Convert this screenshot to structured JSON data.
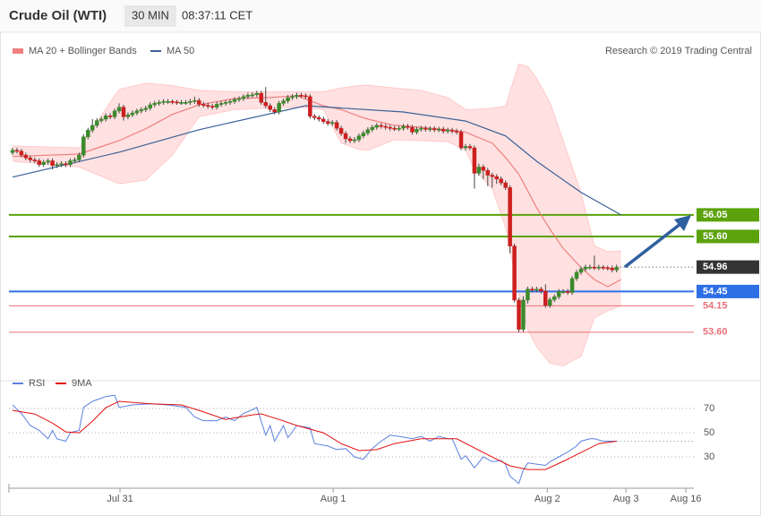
{
  "header": {
    "title": "Crude Oil (WTI)",
    "interval": "30 MIN",
    "time": "08:37:11 CET"
  },
  "chart_data": [
    {
      "type": "candlestick",
      "source": "Research © 2019 Trading Central",
      "xlim": [
        -0.8,
        153.4
      ],
      "xticks": [
        {
          "value": 24.2,
          "label": "Jul 31"
        },
        {
          "value": 72.2,
          "label": "Aug 1"
        },
        {
          "value": 120.4,
          "label": "Aug 2"
        },
        {
          "value": 138.1,
          "label": "Aug 3"
        },
        {
          "value": 151.6,
          "label": "Aug 16"
        }
      ],
      "ylim": [
        52.68,
        59.79
      ],
      "candles": {
        "up_color": "#3b8a2c",
        "down_color": "#cc1f1f",
        "open": [
          57.35,
          57.4,
          57.38,
          57.3,
          57.24,
          57.2,
          57.18,
          57.1,
          57.15,
          57.18,
          57.08,
          57.1,
          57.12,
          57.1,
          57.18,
          57.2,
          57.3,
          57.68,
          57.82,
          57.92,
          58.02,
          58.05,
          58.12,
          58.1,
          58.22,
          58.3,
          58.1,
          58.14,
          58.18,
          58.22,
          58.25,
          58.28,
          58.35,
          58.38,
          58.4,
          58.42,
          58.42,
          58.41,
          58.4,
          58.4,
          58.4,
          58.42,
          58.44,
          58.36,
          58.34,
          58.32,
          58.3,
          58.36,
          58.38,
          58.4,
          58.42,
          58.46,
          58.48,
          58.52,
          58.55,
          58.56,
          58.59,
          58.4,
          58.33,
          58.25,
          58.2,
          58.38,
          58.43,
          58.5,
          58.52,
          58.55,
          58.54,
          58.52,
          58.11,
          58.08,
          58.05,
          58.0,
          57.96,
          57.98,
          57.86,
          57.75,
          57.64,
          57.6,
          57.62,
          57.7,
          57.76,
          57.83,
          57.88,
          57.92,
          57.9,
          57.88,
          57.86,
          57.85,
          57.86,
          57.9,
          57.88,
          57.78,
          57.84,
          57.86,
          57.84,
          57.85,
          57.83,
          57.84,
          57.8,
          57.82,
          57.8,
          57.78,
          57.45,
          57.48,
          57.45,
          56.92,
          57.05,
          56.98,
          56.88,
          56.85,
          56.8,
          56.72,
          56.62,
          55.4,
          54.27,
          53.66,
          54.27,
          54.5,
          54.48,
          54.5,
          54.46,
          54.16,
          54.28,
          54.34,
          54.45,
          54.45,
          54.43,
          54.72,
          54.85,
          54.92,
          54.96,
          54.96,
          54.95,
          54.96,
          54.95,
          54.94,
          54.9
        ],
        "high": [
          57.45,
          57.45,
          57.43,
          57.35,
          57.29,
          57.25,
          57.23,
          57.2,
          57.23,
          57.23,
          57.15,
          57.17,
          57.17,
          57.23,
          57.25,
          57.35,
          57.73,
          57.87,
          58.05,
          58.07,
          58.1,
          58.17,
          58.17,
          58.27,
          58.38,
          58.35,
          58.19,
          58.23,
          58.27,
          58.3,
          58.33,
          58.4,
          58.43,
          58.45,
          58.47,
          58.47,
          58.46,
          58.45,
          58.45,
          58.45,
          58.47,
          58.52,
          58.49,
          58.41,
          58.39,
          58.37,
          58.41,
          58.43,
          58.45,
          58.47,
          58.51,
          58.53,
          58.57,
          58.6,
          58.61,
          58.64,
          58.64,
          58.72,
          58.38,
          58.3,
          58.43,
          58.48,
          58.55,
          58.57,
          58.6,
          58.6,
          58.59,
          58.57,
          58.16,
          58.13,
          58.1,
          58.05,
          58.03,
          58.03,
          57.91,
          57.8,
          57.69,
          57.67,
          57.75,
          57.81,
          57.88,
          57.93,
          57.97,
          57.97,
          57.95,
          57.93,
          57.91,
          57.91,
          57.95,
          57.95,
          57.93,
          57.89,
          57.91,
          57.91,
          57.9,
          57.9,
          57.89,
          57.89,
          57.87,
          57.87,
          57.85,
          57.83,
          57.53,
          57.53,
          57.5,
          57.12,
          57.1,
          57.03,
          56.93,
          56.9,
          56.85,
          56.77,
          56.67,
          55.45,
          54.32,
          54.35,
          54.55,
          54.55,
          54.55,
          54.55,
          54.6,
          54.33,
          54.39,
          54.5,
          54.5,
          54.5,
          54.77,
          54.9,
          54.97,
          55.01,
          55.01,
          55.2,
          55.01,
          55.0,
          54.99,
          54.99,
          55.01
        ],
        "low": [
          57.3,
          57.33,
          57.25,
          57.19,
          57.15,
          57.13,
          57.05,
          57.05,
          57.1,
          57.0,
          57.03,
          57.05,
          57.05,
          57.05,
          57.13,
          57.15,
          57.25,
          57.63,
          57.77,
          57.87,
          57.97,
          58.0,
          58.05,
          58.05,
          58.17,
          58.02,
          58.05,
          58.09,
          58.13,
          58.17,
          58.2,
          58.23,
          58.3,
          58.33,
          58.35,
          58.37,
          58.36,
          58.35,
          58.35,
          58.35,
          58.35,
          58.37,
          58.31,
          58.29,
          58.27,
          58.25,
          58.25,
          58.31,
          58.33,
          58.35,
          58.37,
          58.41,
          58.43,
          58.47,
          58.5,
          58.51,
          58.35,
          58.28,
          58.2,
          58.15,
          58.15,
          58.33,
          58.38,
          58.45,
          58.47,
          58.49,
          58.47,
          58.06,
          58.03,
          58.0,
          57.95,
          57.91,
          57.91,
          57.81,
          57.7,
          57.55,
          57.55,
          57.55,
          57.57,
          57.65,
          57.71,
          57.78,
          57.83,
          57.85,
          57.83,
          57.81,
          57.8,
          57.8,
          57.81,
          57.83,
          57.73,
          57.73,
          57.79,
          57.79,
          57.79,
          57.78,
          57.78,
          57.75,
          57.75,
          57.75,
          57.73,
          57.4,
          57.4,
          57.4,
          56.6,
          56.87,
          56.8,
          56.65,
          56.62,
          56.7,
          56.67,
          56.57,
          55.25,
          54.22,
          53.6,
          53.61,
          54.2,
          54.43,
          54.43,
          54.41,
          54.11,
          54.11,
          54.23,
          54.29,
          54.4,
          54.38,
          54.38,
          54.67,
          54.8,
          54.87,
          54.91,
          54.9,
          54.9,
          54.9,
          54.89,
          54.85,
          54.85
        ],
        "close": [
          57.4,
          57.38,
          57.3,
          57.24,
          57.2,
          57.18,
          57.1,
          57.15,
          57.18,
          57.08,
          57.1,
          57.12,
          57.1,
          57.18,
          57.2,
          57.3,
          57.68,
          57.82,
          57.92,
          58.02,
          58.05,
          58.12,
          58.1,
          58.22,
          58.3,
          58.1,
          58.14,
          58.18,
          58.22,
          58.25,
          58.28,
          58.35,
          58.38,
          58.4,
          58.42,
          58.42,
          58.41,
          58.4,
          58.4,
          58.4,
          58.42,
          58.44,
          58.36,
          58.34,
          58.32,
          58.3,
          58.36,
          58.38,
          58.4,
          58.42,
          58.46,
          58.48,
          58.52,
          58.55,
          58.56,
          58.59,
          58.4,
          58.33,
          58.25,
          58.2,
          58.38,
          58.43,
          58.5,
          58.52,
          58.55,
          58.54,
          58.52,
          58.11,
          58.08,
          58.05,
          58.0,
          57.96,
          57.98,
          57.86,
          57.75,
          57.64,
          57.6,
          57.62,
          57.7,
          57.76,
          57.83,
          57.88,
          57.92,
          57.9,
          57.88,
          57.86,
          57.85,
          57.86,
          57.9,
          57.88,
          57.78,
          57.84,
          57.86,
          57.84,
          57.85,
          57.83,
          57.84,
          57.8,
          57.82,
          57.8,
          57.78,
          57.45,
          57.48,
          57.45,
          56.92,
          57.05,
          56.98,
          56.88,
          56.85,
          56.8,
          56.72,
          56.62,
          55.4,
          54.27,
          53.66,
          54.27,
          54.5,
          54.48,
          54.5,
          54.46,
          54.16,
          54.28,
          54.34,
          54.45,
          54.45,
          54.43,
          54.72,
          54.85,
          54.92,
          54.96,
          54.96,
          54.95,
          54.96,
          54.95,
          54.94,
          54.9,
          54.96
        ]
      },
      "series": [
        {
          "name": "MA 20 + Bollinger Bands",
          "color": "#ee8080",
          "band_color": "#ffe1e1",
          "x": [
            0,
            15,
            24,
            30,
            36,
            42,
            50,
            58,
            64,
            70,
            74,
            78,
            80,
            86,
            92,
            98,
            102,
            104,
            108,
            111,
            114,
            116,
            118,
            121,
            124,
            128,
            131,
            134,
            137
          ],
          "values": [
            57.27,
            57.32,
            57.6,
            57.85,
            58.15,
            58.35,
            58.48,
            58.5,
            58.54,
            58.33,
            58.25,
            58.11,
            58.05,
            57.92,
            57.88,
            57.83,
            57.78,
            57.7,
            57.55,
            57.25,
            56.9,
            56.55,
            56.2,
            55.75,
            55.35,
            54.95,
            54.7,
            54.55,
            54.7
          ],
          "upper": [
            57.49,
            57.45,
            58.67,
            58.8,
            58.75,
            58.65,
            58.62,
            58.62,
            58.62,
            58.62,
            58.7,
            58.75,
            58.76,
            58.7,
            58.65,
            58.5,
            58.25,
            58.25,
            58.28,
            58.32,
            59.2,
            59.15,
            58.9,
            58.4,
            57.6,
            56.5,
            55.4,
            55.28,
            55.3
          ],
          "lower": [
            57.17,
            57.05,
            56.7,
            56.78,
            57.3,
            58.1,
            58.25,
            58.28,
            58.3,
            58.25,
            57.55,
            57.42,
            57.4,
            57.62,
            57.6,
            57.58,
            57.4,
            57.0,
            56.6,
            55.8,
            54.4,
            53.65,
            53.3,
            52.95,
            52.9,
            53.1,
            53.9,
            54.05,
            54.15
          ]
        },
        {
          "name": "MA 50",
          "color": "#3a5f96",
          "x": [
            0,
            24,
            42,
            66,
            88,
            102,
            111,
            118,
            128,
            137
          ],
          "values": [
            56.84,
            57.36,
            57.83,
            58.33,
            58.2,
            58.01,
            57.7,
            57.17,
            56.52,
            56.05
          ]
        }
      ],
      "levels": [
        {
          "value": 56.05,
          "label": "56.05",
          "color": "#5ba20c",
          "line": "solid",
          "label_style": "box"
        },
        {
          "value": 55.6,
          "label": "55.60",
          "color": "#5ba20c",
          "line": "solid",
          "label_style": "box"
        },
        {
          "value": 54.96,
          "label": "54.96",
          "color": "#333333",
          "line": "dotted",
          "label_style": "box"
        },
        {
          "value": 54.45,
          "label": "54.45",
          "color": "#2e6fe6",
          "line": "solid",
          "label_style": "box"
        },
        {
          "value": 54.15,
          "label": "54.15",
          "color": "#e8707a",
          "line": "solid",
          "label_style": "text"
        },
        {
          "value": 53.6,
          "label": "53.60",
          "color": "#e8707a",
          "line": "solid",
          "label_style": "text"
        }
      ]
    },
    {
      "type": "line",
      "ylim": [
        4.1,
        81.9
      ],
      "yticks": [
        30,
        50,
        70
      ],
      "grid": true,
      "series": [
        {
          "name": "RSI",
          "color": "#5b80e0",
          "x": [
            0,
            2,
            4,
            6,
            8,
            9,
            10,
            12,
            13,
            15,
            16,
            18,
            21,
            23,
            24,
            27,
            31,
            35,
            39,
            41,
            43,
            46,
            48,
            50,
            52,
            54,
            55,
            57,
            58,
            59,
            61,
            62,
            64,
            67,
            68,
            71,
            73,
            75,
            77,
            79,
            81,
            83,
            85,
            87,
            90,
            92,
            94,
            96,
            98,
            99,
            101,
            102,
            104,
            106,
            108,
            110,
            111,
            112,
            114,
            115,
            116,
            118,
            120,
            121,
            123,
            125,
            127,
            128,
            130,
            131,
            133,
            135,
            136
          ],
          "values": [
            73,
            66,
            56,
            52,
            45,
            52,
            45,
            43,
            50,
            52,
            71,
            76,
            80,
            81,
            71,
            73,
            74,
            73,
            71,
            63,
            60,
            60,
            63,
            60,
            66,
            69,
            71,
            48,
            56,
            43,
            56,
            46,
            56,
            54,
            41,
            39,
            36,
            37,
            30,
            28,
            37,
            43,
            48,
            47,
            45,
            47,
            43,
            47,
            45,
            45,
            28,
            31,
            21,
            30,
            26,
            27,
            24,
            14,
            8,
            19,
            25,
            24,
            23,
            26,
            30,
            34,
            39,
            43,
            45,
            45,
            43,
            43,
            43
          ]
        },
        {
          "name": "9MA",
          "color": "#e01010",
          "x": [
            0,
            5,
            9,
            12,
            15,
            18,
            21,
            24,
            31,
            38,
            42,
            48,
            54,
            56,
            60,
            64,
            70,
            74,
            78,
            82,
            86,
            92,
            100,
            106,
            112,
            116,
            120,
            124,
            128,
            132,
            136
          ],
          "values": [
            68.5,
            65.5,
            58,
            50.7,
            50,
            59.6,
            70.7,
            76,
            74,
            73,
            68.5,
            61,
            64.8,
            65.6,
            61,
            56,
            50,
            41,
            35.2,
            36,
            41,
            45,
            45,
            33.7,
            22.6,
            19.6,
            19.6,
            26.3,
            33.7,
            41,
            43
          ]
        }
      ]
    }
  ]
}
